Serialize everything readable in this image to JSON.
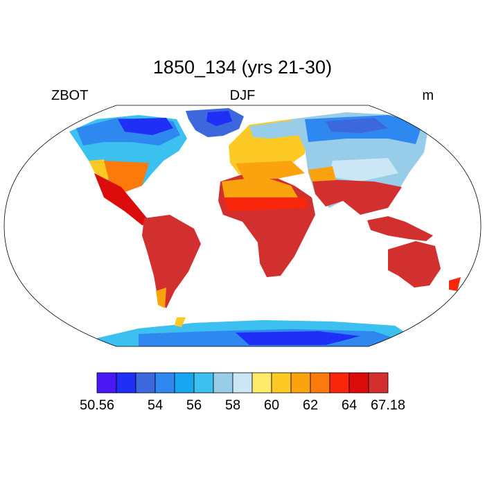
{
  "title": "1850_134 (yrs 21-30)",
  "left_string": "ZBOT",
  "center_string": "DJF",
  "right_string": "m",
  "colorbar": {
    "colors": [
      "#4a17f5",
      "#1f2ff5",
      "#3d67dc",
      "#2f88f0",
      "#18a6f0",
      "#3cc0f0",
      "#98cdea",
      "#cbe7f6",
      "#fde96a",
      "#fcc925",
      "#fba20f",
      "#fa7a0c",
      "#f9260b",
      "#dc0b0c",
      "#d2302e"
    ],
    "labels": [
      "50.56",
      "54",
      "56",
      "58",
      "60",
      "62",
      "64",
      "67.18"
    ]
  }
}
